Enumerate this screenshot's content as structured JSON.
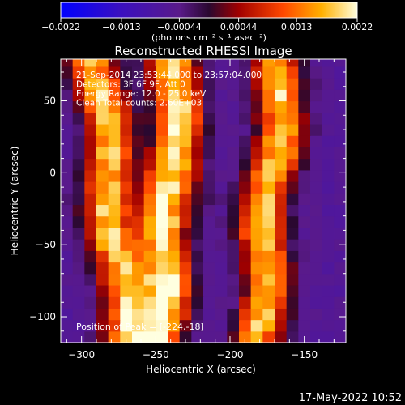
{
  "chart_data": {
    "type": "heatmap",
    "title": "Reconstructed RHESSI Image",
    "xlabel": "Heliocentric X (arcsec)",
    "ylabel": "Heliocentric Y (arcsec)",
    "xlim": [
      -314,
      -122
    ],
    "ylim": [
      -118,
      79
    ],
    "xticks": [
      -300,
      -250,
      -200,
      -150
    ],
    "xtick_labels": [
      "−300",
      "−250",
      "−200",
      "−150"
    ],
    "yticks": [
      50,
      0,
      -50,
      -100
    ],
    "ytick_labels": [
      "50",
      "0",
      "−50",
      "−100"
    ],
    "colorbar": {
      "range": [
        -0.0022,
        0.0022
      ],
      "ticks": [
        -0.0022,
        -0.0013,
        -0.00044,
        0.00044,
        0.0013,
        0.0022
      ],
      "tick_labels": [
        "−0.0022",
        "−0.0013",
        "−0.00044",
        "0.00044",
        "0.0013",
        "0.0022"
      ],
      "unit_label": "(photons cm⁻² s⁻¹ asec⁻²)"
    },
    "bands": [
      {
        "x_at_top": -290,
        "x_at_bottom": -270,
        "strength": 0.9
      },
      {
        "x_at_top": -235,
        "x_at_bottom": -248,
        "strength": 1.0
      },
      {
        "x_at_top": -165,
        "x_at_bottom": -182,
        "strength": 0.88
      }
    ],
    "annotations": [
      "21-Sep-2014 23:53:44.000 to 23:57:04.000",
      "Detectors: 3F 6F 9F, Att 0",
      "Energy Range: 12.0 - 25.0 keV",
      "Clean     Total counts: 2.60E+03"
    ],
    "peak_label": "Position of Peak = [-224,-18]",
    "peak": [
      -224,
      -18
    ]
  },
  "footer": {
    "timestamp": "17-May-2022 10:52"
  },
  "colors": {
    "background": "#000000",
    "axis": "#ffffff",
    "text": "#ffffff"
  }
}
